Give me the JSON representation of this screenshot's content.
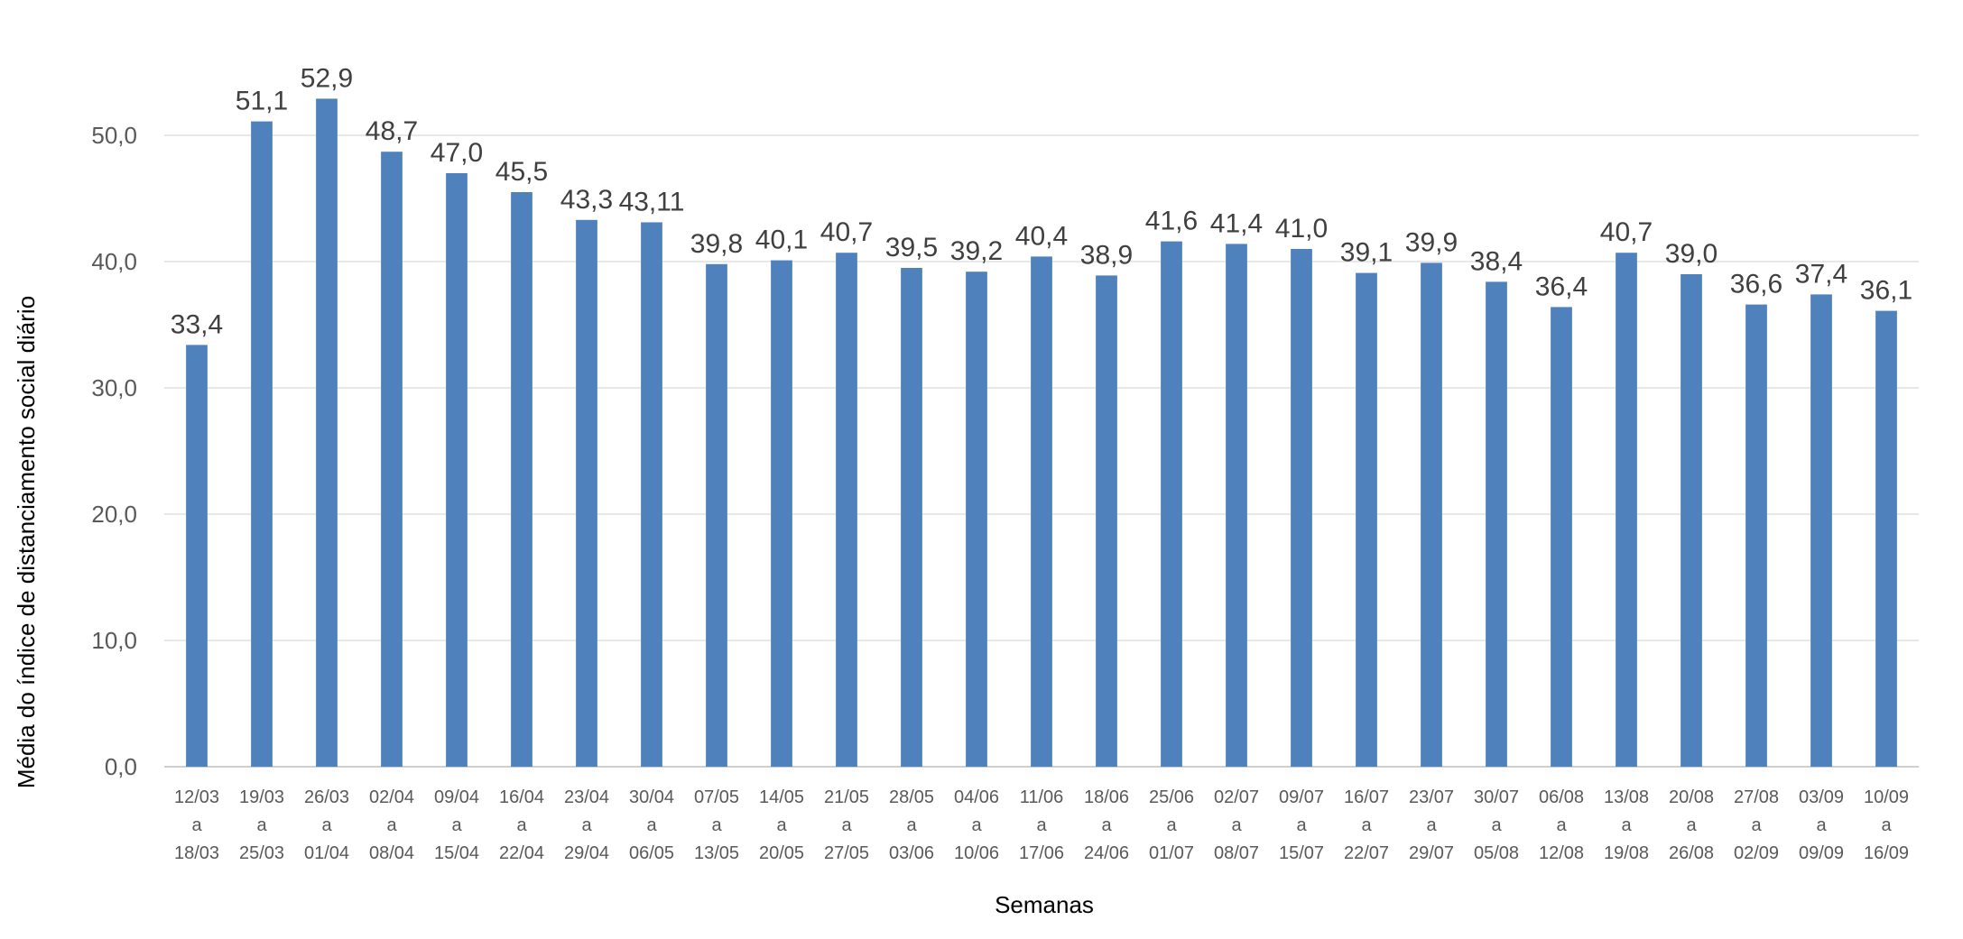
{
  "chart_data": {
    "type": "bar",
    "title": "",
    "xlabel": "Semanas",
    "ylabel": "Média do índice de distanciamento social diário",
    "ylim": [
      0,
      55
    ],
    "yticks": [
      "0,0",
      "10,0",
      "20,0",
      "30,0",
      "40,0",
      "50,0"
    ],
    "grid": true,
    "color": "#4f81bd",
    "categories": [
      [
        "12/03",
        "a",
        "18/03"
      ],
      [
        "19/03",
        "a",
        "25/03"
      ],
      [
        "26/03",
        "a",
        "01/04"
      ],
      [
        "02/04",
        "a",
        "08/04"
      ],
      [
        "09/04",
        "a",
        "15/04"
      ],
      [
        "16/04",
        "a",
        "22/04"
      ],
      [
        "23/04",
        "a",
        "29/04"
      ],
      [
        "30/04",
        "a",
        "06/05"
      ],
      [
        "07/05",
        "a",
        "13/05"
      ],
      [
        "14/05",
        "a",
        "20/05"
      ],
      [
        "21/05",
        "a",
        "27/05"
      ],
      [
        "28/05",
        "a",
        "03/06"
      ],
      [
        "04/06",
        "a",
        "10/06"
      ],
      [
        "11/06",
        "a",
        "17/06"
      ],
      [
        "18/06",
        "a",
        "24/06"
      ],
      [
        "25/06",
        "a",
        "01/07"
      ],
      [
        "02/07",
        "a",
        "08/07"
      ],
      [
        "09/07",
        "a",
        "15/07"
      ],
      [
        "16/07",
        "a",
        "22/07"
      ],
      [
        "23/07",
        "a",
        "29/07"
      ],
      [
        "30/07",
        "a",
        "05/08"
      ],
      [
        "06/08",
        "a",
        "12/08"
      ],
      [
        "13/08",
        "a",
        "19/08"
      ],
      [
        "20/08",
        "a",
        "26/08"
      ],
      [
        "27/08",
        "a",
        "02/09"
      ],
      [
        "03/09",
        "a",
        "09/09"
      ],
      [
        "10/09",
        "a",
        "16/09"
      ]
    ],
    "values": [
      33.4,
      51.1,
      52.9,
      48.7,
      47.0,
      45.5,
      43.3,
      43.11,
      39.8,
      40.1,
      40.7,
      39.5,
      39.2,
      40.4,
      38.9,
      41.6,
      41.4,
      41.0,
      39.1,
      39.9,
      38.4,
      36.4,
      40.7,
      39.0,
      36.6,
      37.4,
      36.1
    ],
    "data_labels": [
      "33,4",
      "51,1",
      "52,9",
      "48,7",
      "47,0",
      "45,5",
      "43,3",
      "43,11",
      "39,8",
      "40,1",
      "40,7",
      "39,5",
      "39,2",
      "40,4",
      "38,9",
      "41,6",
      "41,4",
      "41,0",
      "39,1",
      "39,9",
      "38,4",
      "36,4",
      "40,7",
      "39,0",
      "36,6",
      "37,4",
      "36,1"
    ]
  }
}
